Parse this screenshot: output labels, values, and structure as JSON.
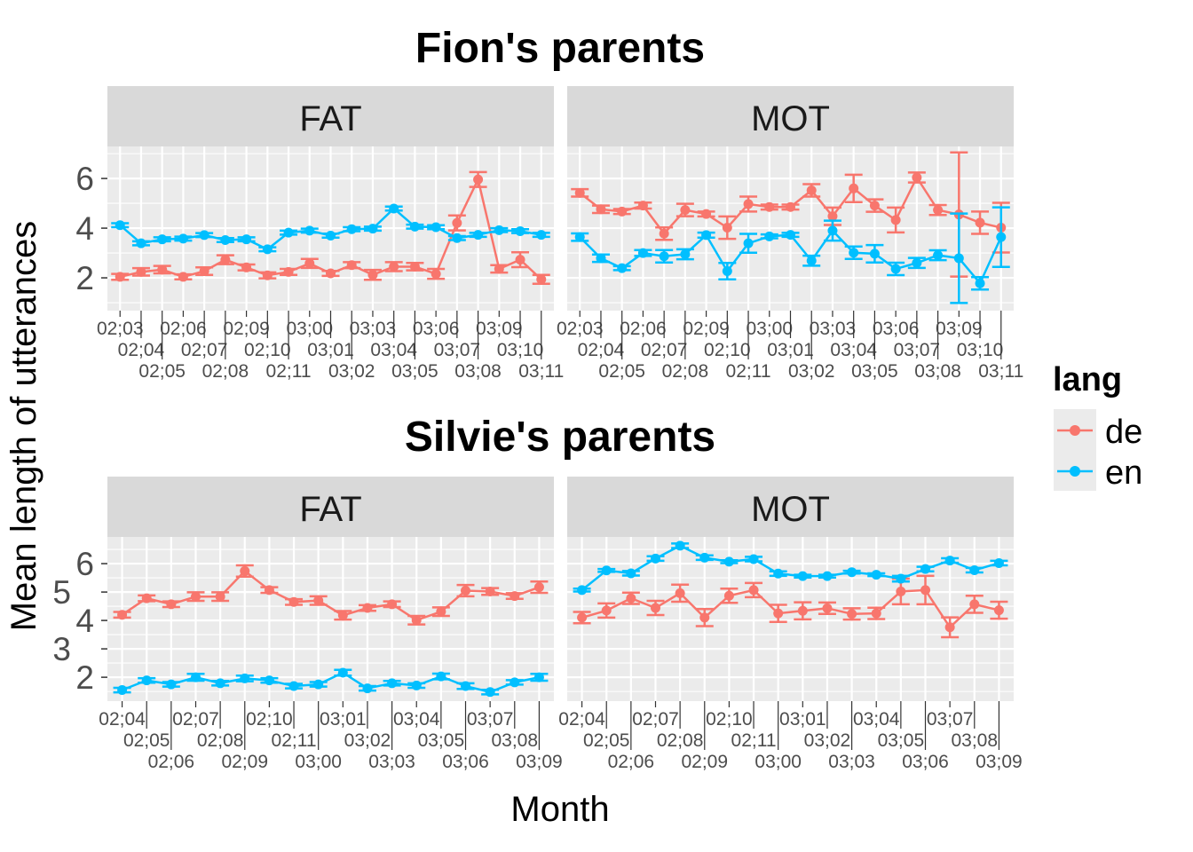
{
  "chart_data": {
    "type": "line",
    "xlabel": "Month",
    "ylabel": "Mean length of utterances",
    "legend": {
      "title": "lang",
      "position": "right",
      "entries": [
        {
          "name": "de",
          "color": "#F8766D"
        },
        {
          "name": "en",
          "color": "#00BFFF"
        }
      ]
    },
    "grid": true,
    "rows": [
      {
        "title": "Fion's parents",
        "categories": [
          "02;03",
          "02;04",
          "02;05",
          "02;06",
          "02;07",
          "02;08",
          "02;09",
          "02;10",
          "02;11",
          "03;00",
          "03;01",
          "03;02",
          "03;03",
          "03;04",
          "03;05",
          "03;06",
          "03;07",
          "03;08",
          "03;09",
          "03;10",
          "03;11"
        ],
        "ylim": [
          0.68,
          7.29
        ],
        "yticks": [
          "2",
          "4",
          "6"
        ],
        "ytick_values": [
          2,
          4,
          6
        ],
        "panels": [
          {
            "strip": "FAT",
            "series": [
              {
                "name": "de",
                "values": [
                  2.04,
                  2.24,
                  2.33,
                  2.04,
                  2.27,
                  2.73,
                  2.42,
                  2.1,
                  2.24,
                  2.58,
                  2.18,
                  2.51,
                  2.12,
                  2.45,
                  2.45,
                  2.16,
                  4.21,
                  5.96,
                  2.36,
                  2.73,
                  1.94
                ],
                "se": [
                  0.12,
                  0.15,
                  0.15,
                  0.1,
                  0.15,
                  0.18,
                  0.12,
                  0.12,
                  0.12,
                  0.18,
                  0.1,
                  0.12,
                  0.2,
                  0.18,
                  0.15,
                  0.2,
                  0.3,
                  0.3,
                  0.15,
                  0.3,
                  0.18
                ]
              },
              {
                "name": "en",
                "values": [
                  4.12,
                  3.39,
                  3.55,
                  3.58,
                  3.72,
                  3.52,
                  3.55,
                  3.15,
                  3.82,
                  3.9,
                  3.7,
                  3.96,
                  3.98,
                  4.79,
                  4.06,
                  4.04,
                  3.6,
                  3.73,
                  3.92,
                  3.88,
                  3.73
                ],
                "se": [
                  0.08,
                  0.08,
                  0.08,
                  0.08,
                  0.08,
                  0.08,
                  0.08,
                  0.08,
                  0.08,
                  0.08,
                  0.08,
                  0.08,
                  0.08,
                  0.08,
                  0.08,
                  0.08,
                  0.08,
                  0.08,
                  0.08,
                  0.08,
                  0.08
                ]
              }
            ]
          },
          {
            "strip": "MOT",
            "series": [
              {
                "name": "de",
                "values": [
                  5.42,
                  4.76,
                  4.67,
                  4.91,
                  3.78,
                  4.73,
                  4.57,
                  4.02,
                  4.97,
                  4.85,
                  4.85,
                  5.52,
                  4.48,
                  5.6,
                  4.91,
                  4.33,
                  6.04,
                  4.73,
                  4.55,
                  4.22,
                  4.02
                ],
                "se": [
                  0.15,
                  0.15,
                  0.1,
                  0.12,
                  0.25,
                  0.25,
                  0.1,
                  0.45,
                  0.3,
                  0.1,
                  0.1,
                  0.25,
                  0.35,
                  0.55,
                  0.25,
                  0.5,
                  0.2,
                  0.2,
                  2.5,
                  0.45,
                  1.0
                ]
              },
              {
                "name": "en",
                "values": [
                  3.64,
                  2.79,
                  2.39,
                  3.0,
                  2.87,
                  2.95,
                  3.72,
                  2.27,
                  3.39,
                  3.67,
                  3.73,
                  2.69,
                  3.9,
                  3.01,
                  2.97,
                  2.36,
                  2.6,
                  2.91,
                  2.79,
                  1.78,
                  3.64
                ],
                "se": [
                  0.15,
                  0.15,
                  0.08,
                  0.12,
                  0.25,
                  0.2,
                  0.1,
                  0.33,
                  0.38,
                  0.08,
                  0.08,
                  0.2,
                  0.4,
                  0.25,
                  0.35,
                  0.25,
                  0.2,
                  0.2,
                  1.8,
                  0.25,
                  1.2
                ]
              }
            ]
          }
        ]
      },
      {
        "title": "Silvie's parents",
        "categories": [
          "02;04",
          "02;05",
          "02;06",
          "02;07",
          "02;08",
          "02;09",
          "02;10",
          "02;11",
          "03;00",
          "03;01",
          "03;02",
          "03;03",
          "03;04",
          "03;05",
          "03;06",
          "03;07",
          "03;08",
          "03;09"
        ],
        "ylim": [
          1.16,
          6.94
        ],
        "yticks": [
          "2",
          "3",
          "4",
          "5",
          "6"
        ],
        "ytick_values": [
          2,
          3,
          4,
          5,
          6
        ],
        "panels": [
          {
            "strip": "FAT",
            "series": [
              {
                "name": "de",
                "values": [
                  4.2,
                  4.78,
                  4.57,
                  4.84,
                  4.84,
                  5.74,
                  5.07,
                  4.65,
                  4.7,
                  4.18,
                  4.44,
                  4.57,
                  4.01,
                  4.31,
                  5.05,
                  5.02,
                  4.86,
                  5.17
                ],
                "se": [
                  0.1,
                  0.1,
                  0.1,
                  0.15,
                  0.15,
                  0.2,
                  0.1,
                  0.1,
                  0.15,
                  0.15,
                  0.1,
                  0.1,
                  0.15,
                  0.15,
                  0.2,
                  0.12,
                  0.1,
                  0.2
                ]
              },
              {
                "name": "en",
                "values": [
                  1.55,
                  1.89,
                  1.75,
                  2.0,
                  1.79,
                  1.96,
                  1.89,
                  1.69,
                  1.75,
                  2.16,
                  1.61,
                  1.79,
                  1.71,
                  2.03,
                  1.69,
                  1.48,
                  1.82,
                  2.0
                ],
                "se": [
                  0.08,
                  0.08,
                  0.08,
                  0.12,
                  0.08,
                  0.1,
                  0.08,
                  0.08,
                  0.08,
                  0.1,
                  0.08,
                  0.08,
                  0.08,
                  0.1,
                  0.1,
                  0.08,
                  0.08,
                  0.12
                ]
              }
            ]
          },
          {
            "strip": "MOT",
            "series": [
              {
                "name": "de",
                "values": [
                  4.1,
                  4.35,
                  4.78,
                  4.44,
                  4.96,
                  4.1,
                  4.87,
                  5.07,
                  4.25,
                  4.34,
                  4.43,
                  4.23,
                  4.25,
                  5.02,
                  5.07,
                  3.76,
                  4.57,
                  4.36
                ],
                "se": [
                  0.2,
                  0.25,
                  0.2,
                  0.25,
                  0.3,
                  0.3,
                  0.25,
                  0.25,
                  0.3,
                  0.3,
                  0.2,
                  0.2,
                  0.2,
                  0.45,
                  0.5,
                  0.35,
                  0.3,
                  0.3
                ]
              },
              {
                "name": "en",
                "values": [
                  5.07,
                  5.76,
                  5.66,
                  6.18,
                  6.63,
                  6.21,
                  6.07,
                  6.16,
                  5.65,
                  5.56,
                  5.56,
                  5.7,
                  5.61,
                  5.47,
                  5.81,
                  6.11,
                  5.77,
                  6.02
                ],
                "se": [
                  0.05,
                  0.05,
                  0.08,
                  0.08,
                  0.08,
                  0.08,
                  0.05,
                  0.08,
                  0.08,
                  0.05,
                  0.05,
                  0.05,
                  0.05,
                  0.1,
                  0.08,
                  0.08,
                  0.08,
                  0.08
                ]
              }
            ]
          }
        ]
      }
    ]
  }
}
